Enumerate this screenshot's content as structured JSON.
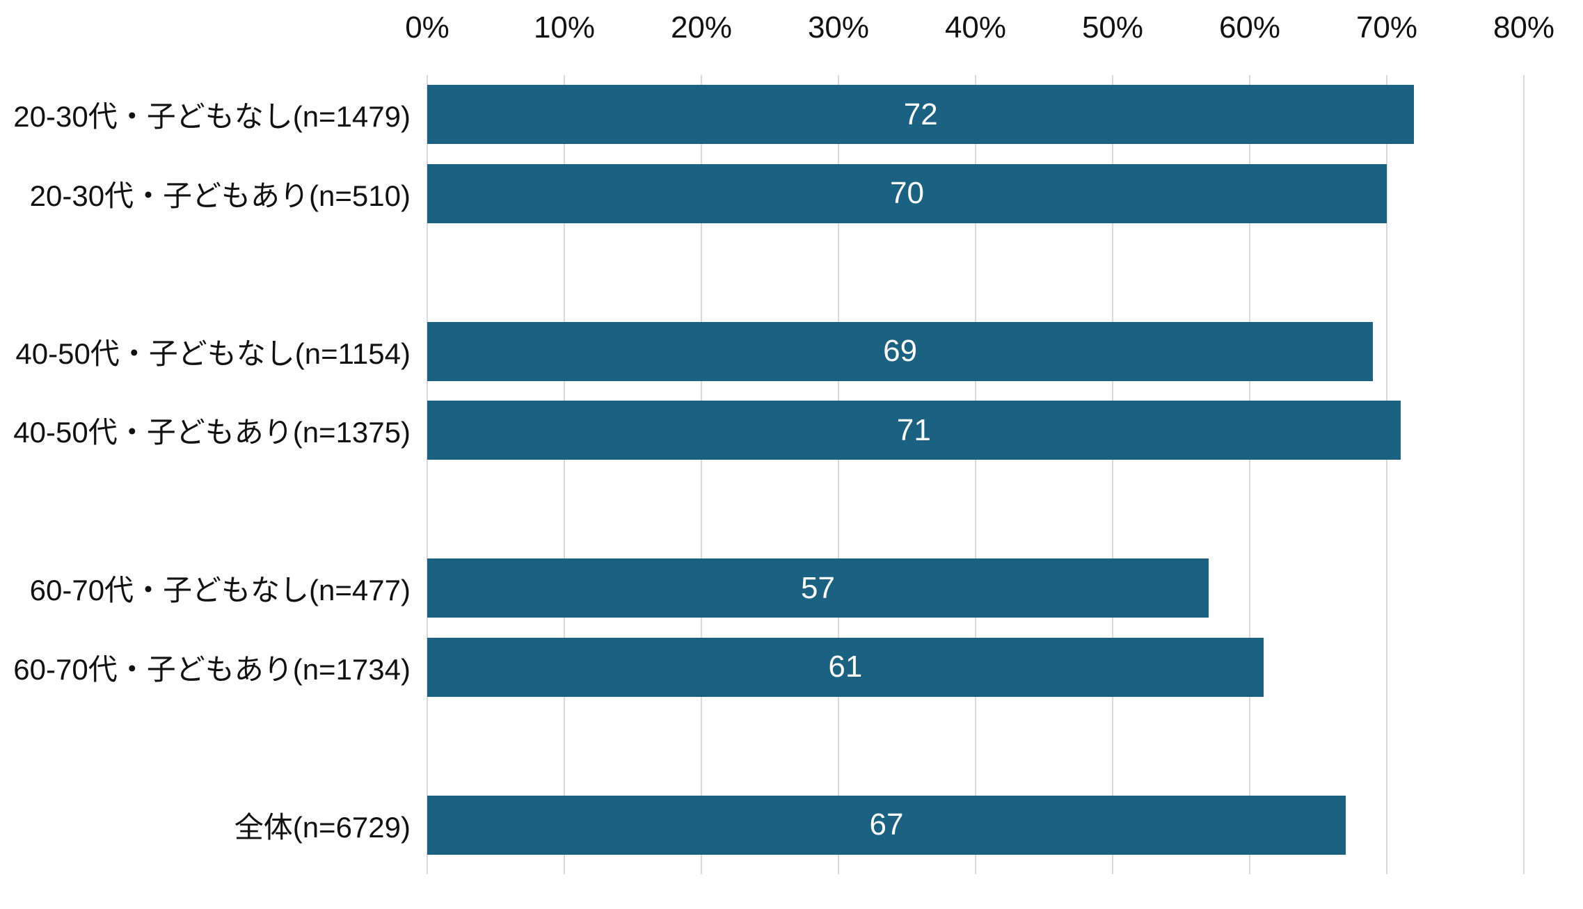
{
  "chart_data": {
    "type": "bar",
    "orientation": "horizontal",
    "title": "",
    "legend": null,
    "x_axis": {
      "position": "top",
      "min": 0,
      "max": 80,
      "tick_step": 10,
      "tick_labels": [
        "0%",
        "10%",
        "20%",
        "30%",
        "40%",
        "50%",
        "60%",
        "70%",
        "80%"
      ],
      "gridlines": true
    },
    "rows": [
      {
        "label": "20-30代・子どもなし(n=1479)",
        "value": 72
      },
      {
        "label": "20-30代・子どもあり(n=510)",
        "value": 70
      },
      {
        "label": "40-50代・子どもなし(n=1154)",
        "value": 69
      },
      {
        "label": "40-50代・子どもあり(n=1375)",
        "value": 71
      },
      {
        "label": "60-70代・子どもなし(n=477)",
        "value": 57
      },
      {
        "label": "60-70代・子どもあり(n=1734)",
        "value": 61
      },
      {
        "label": "全体(n=6729)",
        "value": 67
      }
    ],
    "gap_after_row_indexes": [
      1,
      3,
      5
    ],
    "colors": {
      "bar": "#1b6182",
      "value_label": "#ffffff",
      "gridline": "#d9d9d9",
      "axis_text": "#111111",
      "category_text": "#111111",
      "background": "#ffffff"
    }
  }
}
